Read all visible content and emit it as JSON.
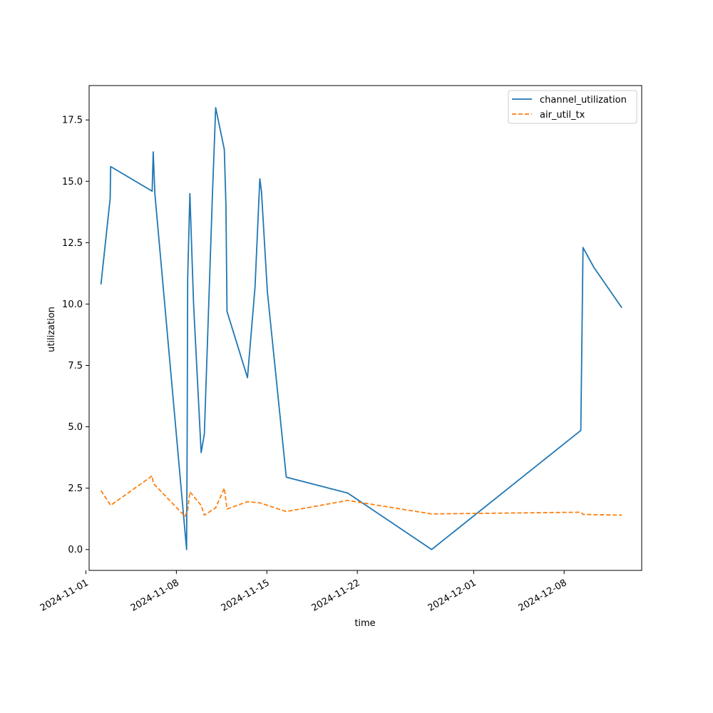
{
  "chart_data": {
    "type": "line",
    "title": "",
    "xlabel": "time",
    "ylabel": "utilization",
    "xlim": [
      "2024-11-01T06:00",
      "2024-12-14T00:00"
    ],
    "ylim": [
      -0.85,
      18.9
    ],
    "x_ticks": [
      "2024-11-01",
      "2024-11-08",
      "2024-11-15",
      "2024-11-22",
      "2024-12-01",
      "2024-12-08"
    ],
    "y_ticks": [
      0.0,
      2.5,
      5.0,
      7.5,
      10.0,
      12.5,
      15.0,
      17.5
    ],
    "y_tick_labels": [
      "0.0",
      "2.5",
      "5.0",
      "7.5",
      "10.0",
      "12.5",
      "15.0",
      "17.5"
    ],
    "grid": false,
    "legend_position": "top-right",
    "series": [
      {
        "name": "channel_utilization",
        "color": "#1f77b4",
        "style": "solid",
        "points": [
          [
            "2024-11-02T04:00",
            10.8
          ],
          [
            "2024-11-02T21:00",
            14.3
          ],
          [
            "2024-11-02T22:00",
            15.6
          ],
          [
            "2024-11-06T03:00",
            14.6
          ],
          [
            "2024-11-06T05:00",
            16.2
          ],
          [
            "2024-11-06T08:00",
            14.5
          ],
          [
            "2024-11-08T19:00",
            0.0
          ],
          [
            "2024-11-08T20:00",
            4.5
          ],
          [
            "2024-11-08T21:00",
            11.0
          ],
          [
            "2024-11-09T01:00",
            14.5
          ],
          [
            "2024-11-09T08:00",
            10.0
          ],
          [
            "2024-11-09T22:00",
            3.95
          ],
          [
            "2024-11-10T04:00",
            4.7
          ],
          [
            "2024-11-10T19:00",
            14.5
          ],
          [
            "2024-11-11T01:00",
            18.0
          ],
          [
            "2024-11-11T17:00",
            16.3
          ],
          [
            "2024-11-11T20:00",
            14.0
          ],
          [
            "2024-11-11T22:00",
            9.7
          ],
          [
            "2024-11-13T12:00",
            7.0
          ],
          [
            "2024-11-14T02:00",
            10.7
          ],
          [
            "2024-11-14T11:00",
            15.1
          ],
          [
            "2024-11-14T14:00",
            14.6
          ],
          [
            "2024-11-15T01:00",
            10.5
          ],
          [
            "2024-11-16T12:00",
            2.95
          ],
          [
            "2024-11-21T06:00",
            2.3
          ],
          [
            "2024-11-27T18:00",
            0.0
          ],
          [
            "2024-12-09T07:00",
            4.85
          ],
          [
            "2024-12-09T11:00",
            12.3
          ],
          [
            "2024-12-10T07:00",
            11.5
          ],
          [
            "2024-12-12T11:00",
            9.85
          ]
        ]
      },
      {
        "name": "air_util_tx",
        "color": "#ff7f0e",
        "style": "dashed",
        "points": [
          [
            "2024-11-02T04:00",
            2.4
          ],
          [
            "2024-11-02T22:00",
            1.8
          ],
          [
            "2024-11-06T03:00",
            3.0
          ],
          [
            "2024-11-06T05:00",
            2.7
          ],
          [
            "2024-11-08T16:00",
            1.35
          ],
          [
            "2024-11-08T21:00",
            1.6
          ],
          [
            "2024-11-09T01:00",
            2.35
          ],
          [
            "2024-11-09T22:00",
            1.8
          ],
          [
            "2024-11-10T04:00",
            1.4
          ],
          [
            "2024-11-11T01:00",
            1.7
          ],
          [
            "2024-11-11T17:00",
            2.5
          ],
          [
            "2024-11-11T22:00",
            1.65
          ],
          [
            "2024-11-13T12:00",
            1.95
          ],
          [
            "2024-11-14T11:00",
            1.9
          ],
          [
            "2024-11-16T12:00",
            1.55
          ],
          [
            "2024-11-21T06:00",
            2.0
          ],
          [
            "2024-11-27T18:00",
            1.45
          ],
          [
            "2024-12-09T07:00",
            1.52
          ],
          [
            "2024-12-09T11:00",
            1.43
          ],
          [
            "2024-12-12T11:00",
            1.4
          ]
        ]
      }
    ]
  }
}
